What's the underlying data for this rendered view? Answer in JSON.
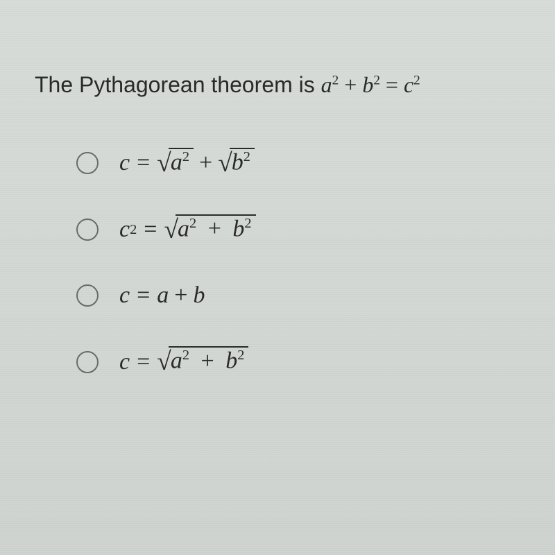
{
  "question": {
    "text_prefix": "The Pythagorean theorem is ",
    "formula_a": "a",
    "formula_b": "b",
    "formula_c": "c",
    "exp": "2",
    "plus": "+",
    "equals": "="
  },
  "options": [
    {
      "lhs": "c",
      "lhs_exp": "",
      "eq": "=",
      "rhs_type": "sqrt_a2_plus_sqrt_b2"
    },
    {
      "lhs": "c",
      "lhs_exp": "2",
      "eq": "=",
      "rhs_type": "sqrt_a2_plus_b2"
    },
    {
      "lhs": "c",
      "lhs_exp": "",
      "eq": "=",
      "rhs_type": "a_plus_b"
    },
    {
      "lhs": "c",
      "lhs_exp": "",
      "eq": "=",
      "rhs_type": "sqrt_a2_plus_b2"
    }
  ],
  "style": {
    "text_color": "#2a2a2a",
    "radio_border": "#6a6a6a",
    "bg_top": "#d8dcd8",
    "bg_bottom": "#d0d4d0",
    "question_fontsize": 32,
    "formula_fontsize": 34,
    "radio_size": 28
  },
  "symbols": {
    "a": "a",
    "b": "b",
    "c": "c",
    "two": "2",
    "plus": "+",
    "eq": "=",
    "radical": "√"
  }
}
